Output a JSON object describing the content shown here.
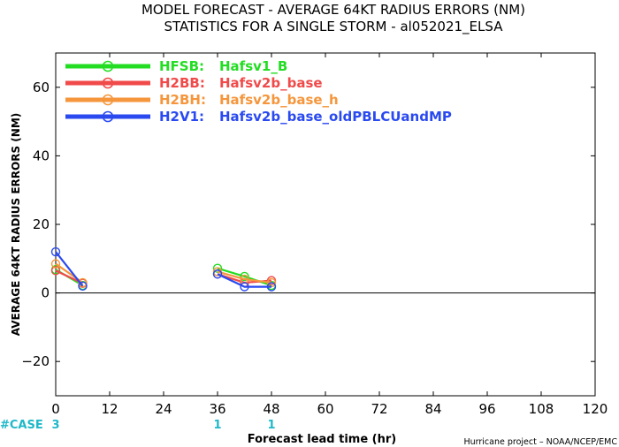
{
  "chart_data": {
    "type": "line",
    "title": "MODEL FORECAST - AVERAGE 64KT RADIUS ERRORS (NM)",
    "subtitle": "STATISTICS FOR A SINGLE STORM - al052021_ELSA",
    "xlabel": "Forecast lead time (hr)",
    "ylabel": "AVERAGE 64KT RADIUS ERRORS (NM)",
    "xlim": [
      0,
      120
    ],
    "ylim": [
      -30,
      70
    ],
    "xticks": [
      0,
      12,
      24,
      36,
      48,
      60,
      72,
      84,
      96,
      108,
      120
    ],
    "yticks": [
      -20,
      0,
      20,
      40,
      60
    ],
    "xtick_labels": [
      "0",
      "12",
      "24",
      "36",
      "48",
      "60",
      "72",
      "84",
      "96",
      "108",
      "120"
    ],
    "ytick_labels": [
      "−20",
      "0",
      "20",
      "40",
      "60"
    ],
    "zero_line": true,
    "grid": false,
    "legend_position": "top-left",
    "case_label": "#CASE",
    "case_counts": [
      {
        "x": 0,
        "label": "3"
      },
      {
        "x": 36,
        "label": "1"
      },
      {
        "x": 48,
        "label": "1"
      }
    ],
    "credit": "Hurricane project – NOAA/NCEP/EMC",
    "series": [
      {
        "name": "HFSB:",
        "desc": "Hafsv1_B",
        "color": "#22dd22",
        "segments": [
          [
            {
              "x": 0,
              "y": 6.8
            },
            {
              "x": 6,
              "y": 2.2
            }
          ],
          [
            {
              "x": 36,
              "y": 7.2
            },
            {
              "x": 42,
              "y": 4.8
            },
            {
              "x": 48,
              "y": 2.2
            }
          ]
        ]
      },
      {
        "name": "H2BB:",
        "desc": "Hafsv2b_base",
        "color": "#f04a4a",
        "segments": [
          [
            {
              "x": 0,
              "y": 6.5
            },
            {
              "x": 6,
              "y": 2.8
            }
          ],
          [
            {
              "x": 36,
              "y": 5.5
            },
            {
              "x": 42,
              "y": 3.0
            },
            {
              "x": 48,
              "y": 3.6
            }
          ]
        ]
      },
      {
        "name": "H2BH:",
        "desc": "Hafsv2b_base_h",
        "color": "#f5963c",
        "segments": [
          [
            {
              "x": 0,
              "y": 8.5
            },
            {
              "x": 6,
              "y": 3.0
            }
          ],
          [
            {
              "x": 36,
              "y": 6.2
            },
            {
              "x": 42,
              "y": 4.0
            },
            {
              "x": 48,
              "y": 3.0
            }
          ]
        ]
      },
      {
        "name": "H2V1:",
        "desc": "Hafsv2b_base_oldPBLCUandMP",
        "color": "#2a4af0",
        "segments": [
          [
            {
              "x": 0,
              "y": 12.0
            },
            {
              "x": 6,
              "y": 2.0
            }
          ],
          [
            {
              "x": 36,
              "y": 5.5
            },
            {
              "x": 42,
              "y": 1.8
            },
            {
              "x": 48,
              "y": 1.8
            }
          ]
        ]
      }
    ]
  }
}
